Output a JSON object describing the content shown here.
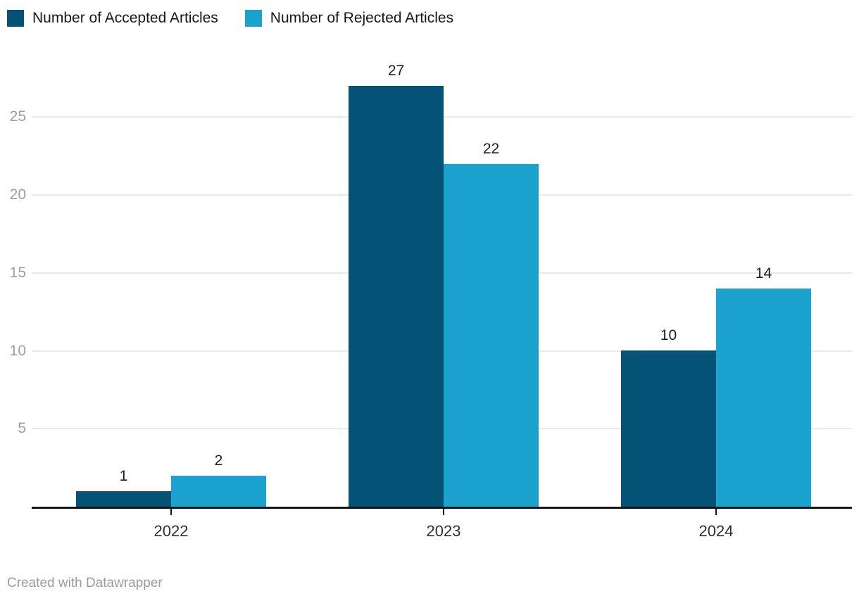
{
  "canvas": {
    "background": "#ffffff"
  },
  "chart_data": {
    "type": "bar",
    "categories": [
      "2022",
      "2023",
      "2024"
    ],
    "series": [
      {
        "name": "Number of Accepted Articles",
        "color": "#045377",
        "values": [
          1,
          27,
          10
        ]
      },
      {
        "name": "Number of Rejected Articles",
        "color": "#1ca2cf",
        "values": [
          2,
          22,
          14
        ]
      }
    ],
    "value_labels": [
      [
        "1",
        "27",
        "10"
      ],
      [
        "2",
        "22",
        "14"
      ]
    ],
    "title": "",
    "xlabel": "",
    "ylabel": "",
    "ylim": [
      0,
      27
    ],
    "yticks": [
      5,
      10,
      15,
      20,
      25
    ],
    "grid": true,
    "legend_position": "top-left",
    "style": {
      "grid_color": "#e9e9e9",
      "axis_color": "#18181a",
      "ytick_label_color": "#9d9d9d",
      "xtick_label_color": "#2e2e2e",
      "value_label_color": "#1d1d1d",
      "legend_text_color": "#18181a"
    }
  },
  "footer": {
    "credit": "Created with Datawrapper"
  }
}
